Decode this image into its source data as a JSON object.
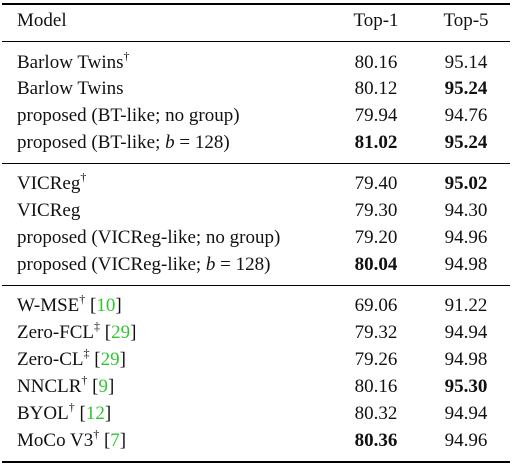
{
  "header": {
    "model": "Model",
    "top1": "Top-1",
    "top5": "Top-5"
  },
  "group1": [
    {
      "model": "Barlow Twins",
      "mark": "†",
      "top1": "80.16",
      "top5": "95.14"
    },
    {
      "model": "Barlow Twins",
      "top1": "80.12",
      "top5": "95.24"
    },
    {
      "model": "proposed (BT-like; no group)",
      "top1": "79.94",
      "top5": "94.76"
    },
    {
      "model_pre": "proposed (BT-like; ",
      "model_var": "b",
      "model_post": " = 128)",
      "top1": "81.02",
      "top5": "95.24"
    }
  ],
  "group2": [
    {
      "model": "VICReg",
      "mark": "†",
      "top1": "79.40",
      "top5": "95.02"
    },
    {
      "model": "VICReg",
      "top1": "79.30",
      "top5": "94.30"
    },
    {
      "model": "proposed (VICReg-like; no group)",
      "top1": "79.20",
      "top5": "94.96"
    },
    {
      "model_pre": "proposed (VICReg-like; ",
      "model_var": "b",
      "model_post": " = 128)",
      "top1": "80.04",
      "top5": "94.98"
    }
  ],
  "group3": [
    {
      "model": "W-MSE",
      "mark": "†",
      "ref": "10",
      "top1": "69.06",
      "top5": "91.22"
    },
    {
      "model": "Zero-FCL",
      "mark": "‡",
      "ref": "29",
      "top1": "79.32",
      "top5": "94.94"
    },
    {
      "model": "Zero-CL",
      "mark": "‡",
      "ref": "29",
      "top1": "79.26",
      "top5": "94.98"
    },
    {
      "model": "NNCLR",
      "mark": "†",
      "ref": "9",
      "top1": "80.16",
      "top5": "95.30"
    },
    {
      "model": "BYOL",
      "mark": "†",
      "ref": "12",
      "top1": "80.32",
      "top5": "94.94"
    },
    {
      "model": "MoCo V3",
      "mark": "†",
      "ref": "7",
      "top1": "80.36",
      "top5": "94.96"
    }
  ],
  "colors": {
    "citation": "#2fc62f",
    "rule": "#000000"
  }
}
